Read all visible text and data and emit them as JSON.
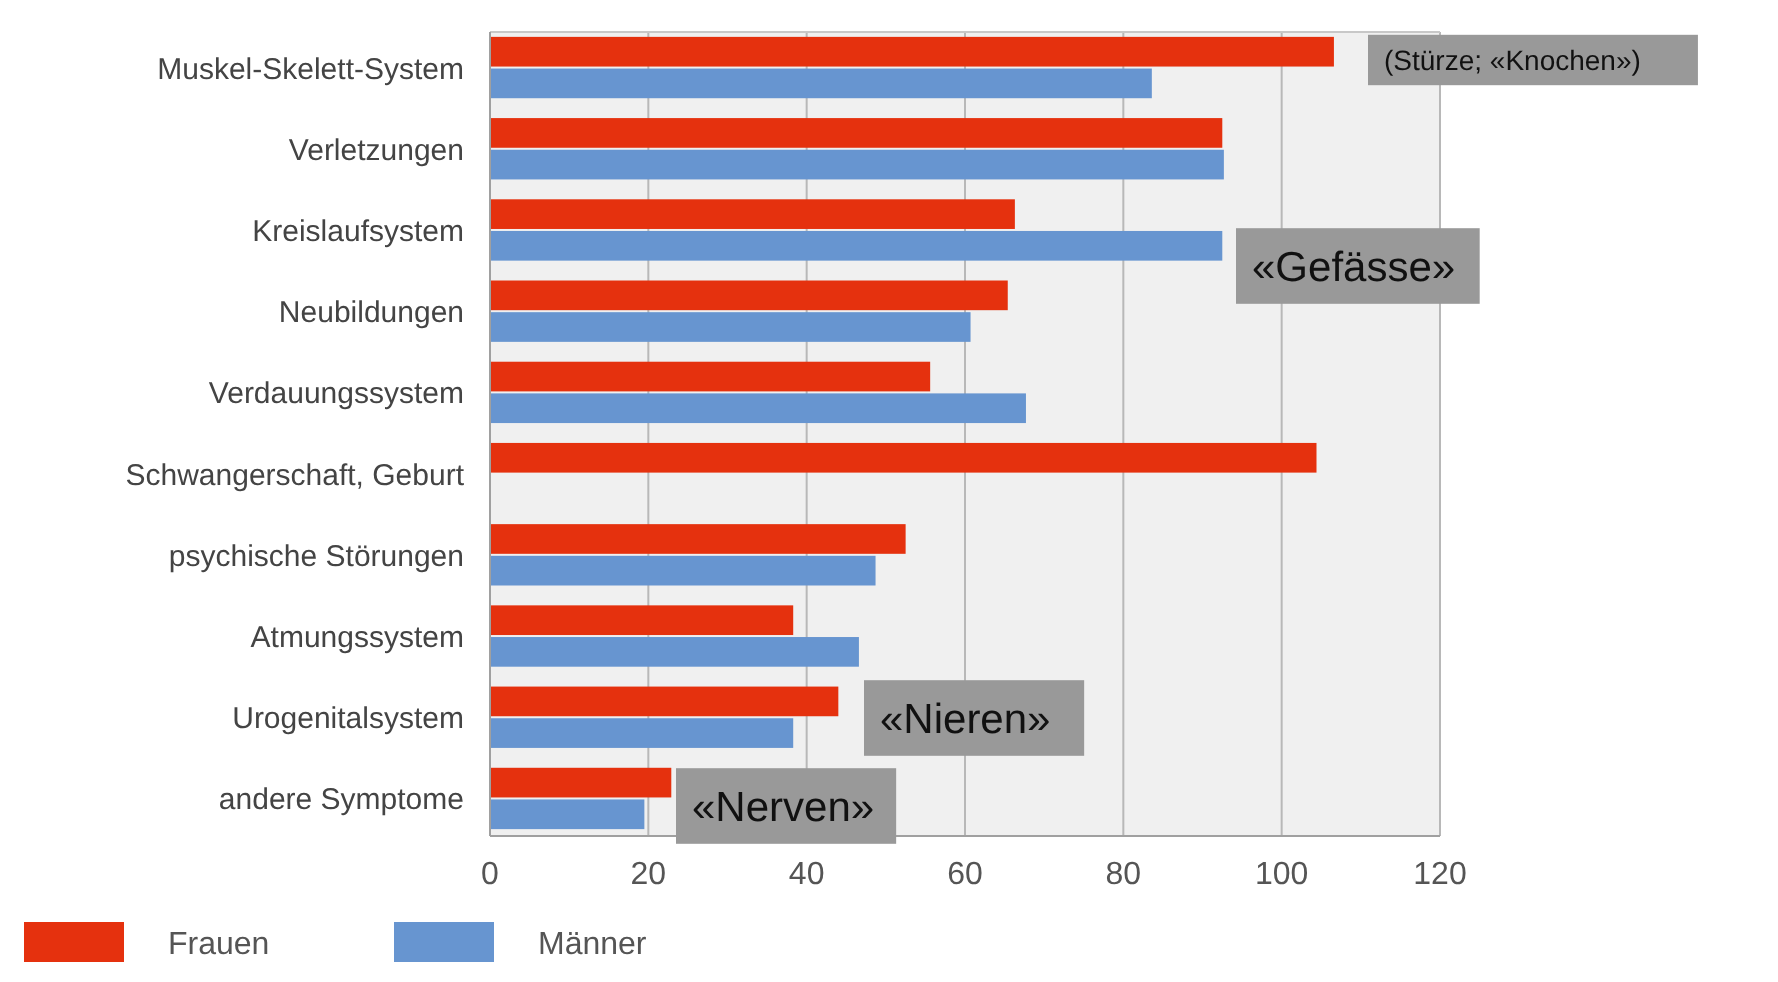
{
  "chart_data": {
    "type": "bar",
    "orientation": "horizontal",
    "categories": [
      "Muskel-Skelett-System",
      "Verletzungen",
      "Kreislaufsystem",
      "Neubildungen",
      "Verdauungssystem",
      "Schwangerschaft, Geburt",
      "psychische Störungen",
      "Atmungssystem",
      "Urogenitalsystem",
      "andere Symptome"
    ],
    "series": [
      {
        "name": "Frauen",
        "color": "#e5310e",
        "values": [
          106.6,
          92.5,
          66.3,
          65.4,
          55.6,
          104.4,
          52.5,
          38.3,
          44,
          22.9
        ]
      },
      {
        "name": "Männer",
        "color": "#6795d0",
        "values": [
          83.6,
          92.7,
          92.5,
          60.7,
          67.7,
          null,
          48.7,
          46.6,
          38.3,
          19.5
        ]
      }
    ],
    "xlim": [
      0,
      120
    ],
    "xticks": [
      0,
      20,
      40,
      60,
      80,
      100,
      120
    ],
    "grid": "x",
    "legend": "bottom left",
    "annotations": [
      "(Stürze; «Knochen»)",
      "«Gefässe»",
      "«Nieren»",
      "«Nerven»"
    ]
  }
}
